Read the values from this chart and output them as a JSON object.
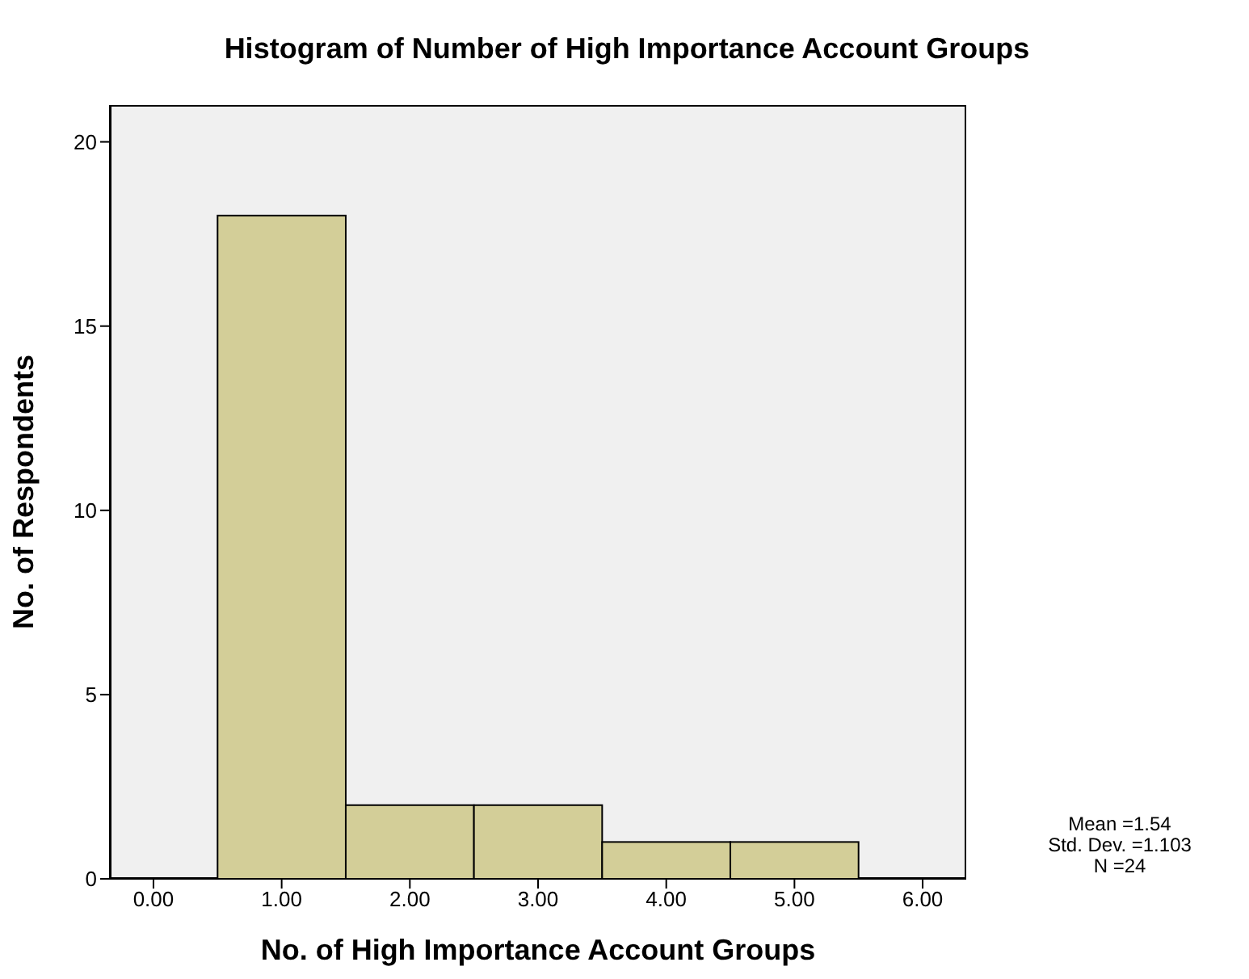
{
  "chart_data": {
    "type": "histogram",
    "title": "Histogram of Number of High Importance Account Groups",
    "xlabel": "No. of High Importance Account Groups",
    "ylabel": "No. of Respondents",
    "bins": [
      0.5,
      1.5,
      2.5,
      3.5,
      4.5,
      5.5
    ],
    "values": [
      18,
      2,
      2,
      1,
      1
    ],
    "color": "#d3ce98",
    "xlim": [
      -0.34,
      6.34
    ],
    "xticks": [
      {
        "value": 0,
        "label": "0.00"
      },
      {
        "value": 1,
        "label": "1.00"
      },
      {
        "value": 2,
        "label": "2.00"
      },
      {
        "value": 3,
        "label": "3.00"
      },
      {
        "value": 4,
        "label": "4.00"
      },
      {
        "value": 5,
        "label": "5.00"
      },
      {
        "value": 6,
        "label": "6.00"
      }
    ],
    "ylim": [
      0,
      21
    ],
    "yticks": [
      0,
      5,
      10,
      15,
      20
    ],
    "annotations": [
      "Mean =1.54",
      "Std. Dev. =1.103",
      "N =24"
    ]
  }
}
